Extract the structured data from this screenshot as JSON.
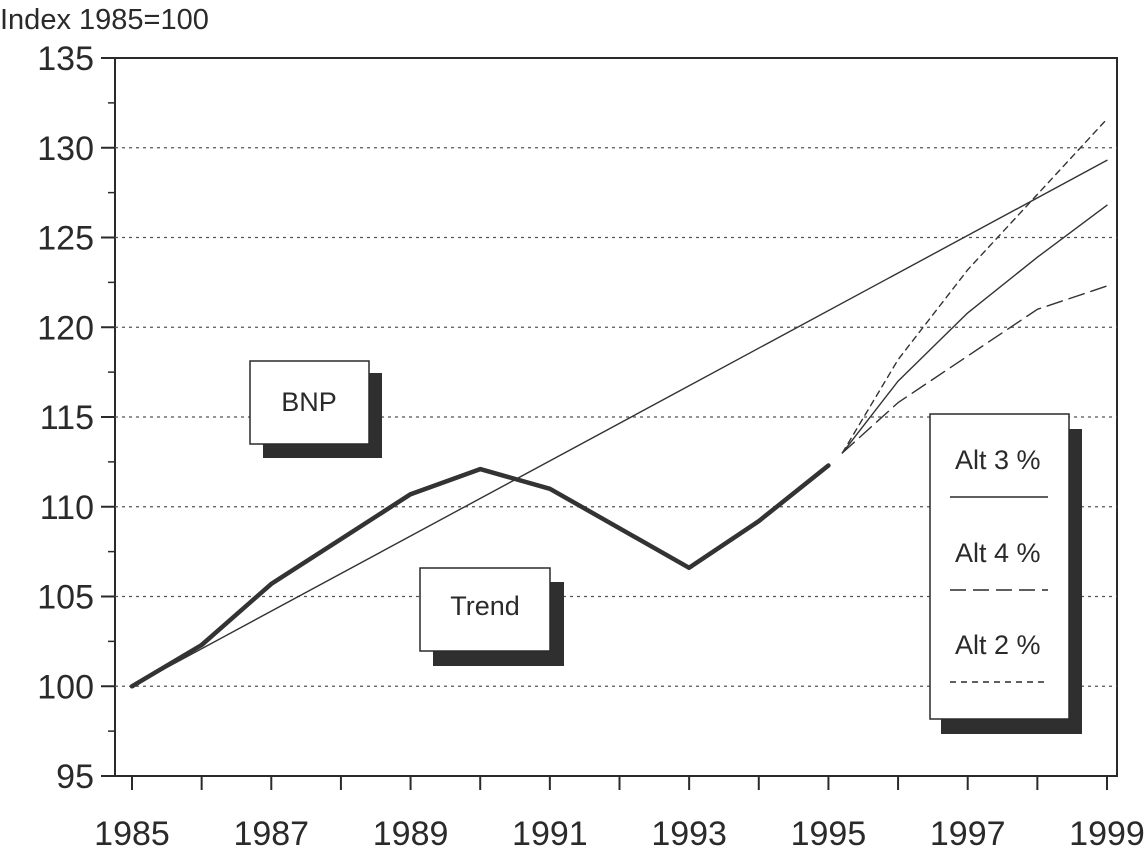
{
  "chart_data": {
    "type": "line",
    "title": "",
    "ylabel": "Index 1985=100",
    "xlabel": "",
    "x_range": [
      1985,
      1999
    ],
    "ylim": [
      95,
      135
    ],
    "y_ticks": [
      95,
      100,
      105,
      110,
      115,
      120,
      125,
      130,
      135
    ],
    "x_ticks": [
      1985,
      1987,
      1989,
      1991,
      1993,
      1995,
      1997,
      1999
    ],
    "grid": "horizontal dotted",
    "series": [
      {
        "name": "BNP",
        "style": "thick",
        "x": [
          1985,
          1986,
          1987,
          1988,
          1989,
          1990,
          1991,
          1992,
          1993,
          1994,
          1995
        ],
        "values": [
          100.0,
          102.3,
          105.7,
          108.2,
          110.7,
          112.1,
          111.0,
          108.8,
          106.6,
          109.2,
          112.3
        ]
      },
      {
        "name": "Trend",
        "style": "thin",
        "x": [
          1985,
          1999
        ],
        "values": [
          100.0,
          129.3
        ]
      },
      {
        "name": "Alt 3 %",
        "style": "solid",
        "x": [
          1995.2,
          1996,
          1997,
          1998,
          1999
        ],
        "values": [
          113.0,
          117.0,
          120.8,
          123.9,
          126.8
        ]
      },
      {
        "name": "Alt 4 %",
        "style": "longdash",
        "x": [
          1995.2,
          1996,
          1997,
          1998,
          1999
        ],
        "values": [
          113.0,
          115.8,
          118.4,
          121.0,
          122.3
        ]
      },
      {
        "name": "Alt 2 %",
        "style": "shortdash",
        "x": [
          1995.2,
          1996,
          1997,
          1998,
          1999
        ],
        "values": [
          113.0,
          118.2,
          123.2,
          127.4,
          131.6
        ]
      }
    ],
    "annotations": [
      {
        "text": "BNP",
        "attach": "left"
      },
      {
        "text": "Trend",
        "attach": "center"
      }
    ],
    "legend_position": "lower-right",
    "legend": [
      {
        "label": "Alt 3 %",
        "style": "solid"
      },
      {
        "label": "Alt 4 %",
        "style": "longdash"
      },
      {
        "label": "Alt 2 %",
        "style": "shortdash"
      }
    ]
  }
}
